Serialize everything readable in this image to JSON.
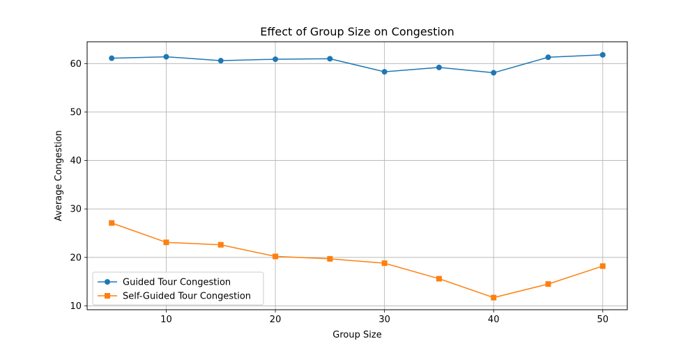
{
  "chart_data": {
    "type": "line",
    "title": "Effect of Group Size on Congestion",
    "xlabel": "Group Size",
    "ylabel": "Average Congestion",
    "x": [
      5,
      10,
      15,
      20,
      25,
      30,
      35,
      40,
      45,
      50
    ],
    "xlim": [
      2.75,
      52.25
    ],
    "ylim": [
      9.2,
      64.5
    ],
    "xticks": [
      10,
      20,
      30,
      40,
      50
    ],
    "yticks": [
      10,
      20,
      30,
      40,
      50,
      60
    ],
    "grid": true,
    "legend_position": "lower-left",
    "series": [
      {
        "name": "Guided Tour Congestion",
        "color": "#1f77b4",
        "marker": "circle",
        "values": [
          61.1,
          61.4,
          60.6,
          60.9,
          61.0,
          58.3,
          59.2,
          58.1,
          61.3,
          61.8
        ]
      },
      {
        "name": "Self-Guided Tour Congestion",
        "color": "#ff7f0e",
        "marker": "square",
        "values": [
          27.1,
          23.1,
          22.6,
          20.2,
          19.7,
          18.8,
          15.6,
          11.7,
          14.5,
          18.2
        ]
      }
    ]
  }
}
